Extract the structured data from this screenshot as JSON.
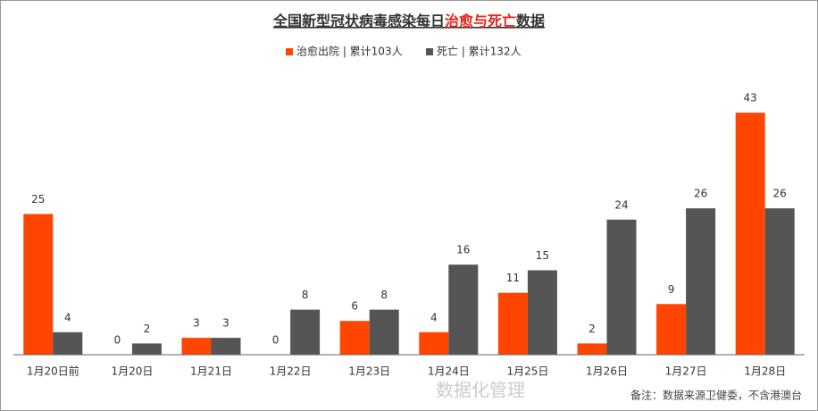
{
  "chart_data": {
    "type": "bar",
    "title": [
      {
        "text": "全国新型冠状病毒感染每日",
        "color": "#333333"
      },
      {
        "text": "治愈与死亡",
        "color": "#e8231a"
      },
      {
        "text": "数据",
        "color": "#333333"
      }
    ],
    "categories": [
      "1月20日前",
      "1月20日",
      "1月21日",
      "1月22日",
      "1月23日",
      "1月24日",
      "1月25日",
      "1月26日",
      "1月27日",
      "1月28日"
    ],
    "series": [
      {
        "name": "治愈出院 | 累计103人",
        "color": "#ff4500",
        "values": [
          25,
          0,
          3,
          0,
          6,
          4,
          11,
          2,
          9,
          43
        ]
      },
      {
        "name": "死亡 | 累计132人",
        "color": "#555555",
        "values": [
          4,
          2,
          3,
          8,
          8,
          16,
          15,
          24,
          26,
          26
        ]
      }
    ],
    "ylim": [
      0,
      50
    ],
    "legend": "top",
    "footnote": "备注：数据来源卫健委，不含港澳台",
    "watermark": "数据化管理"
  }
}
